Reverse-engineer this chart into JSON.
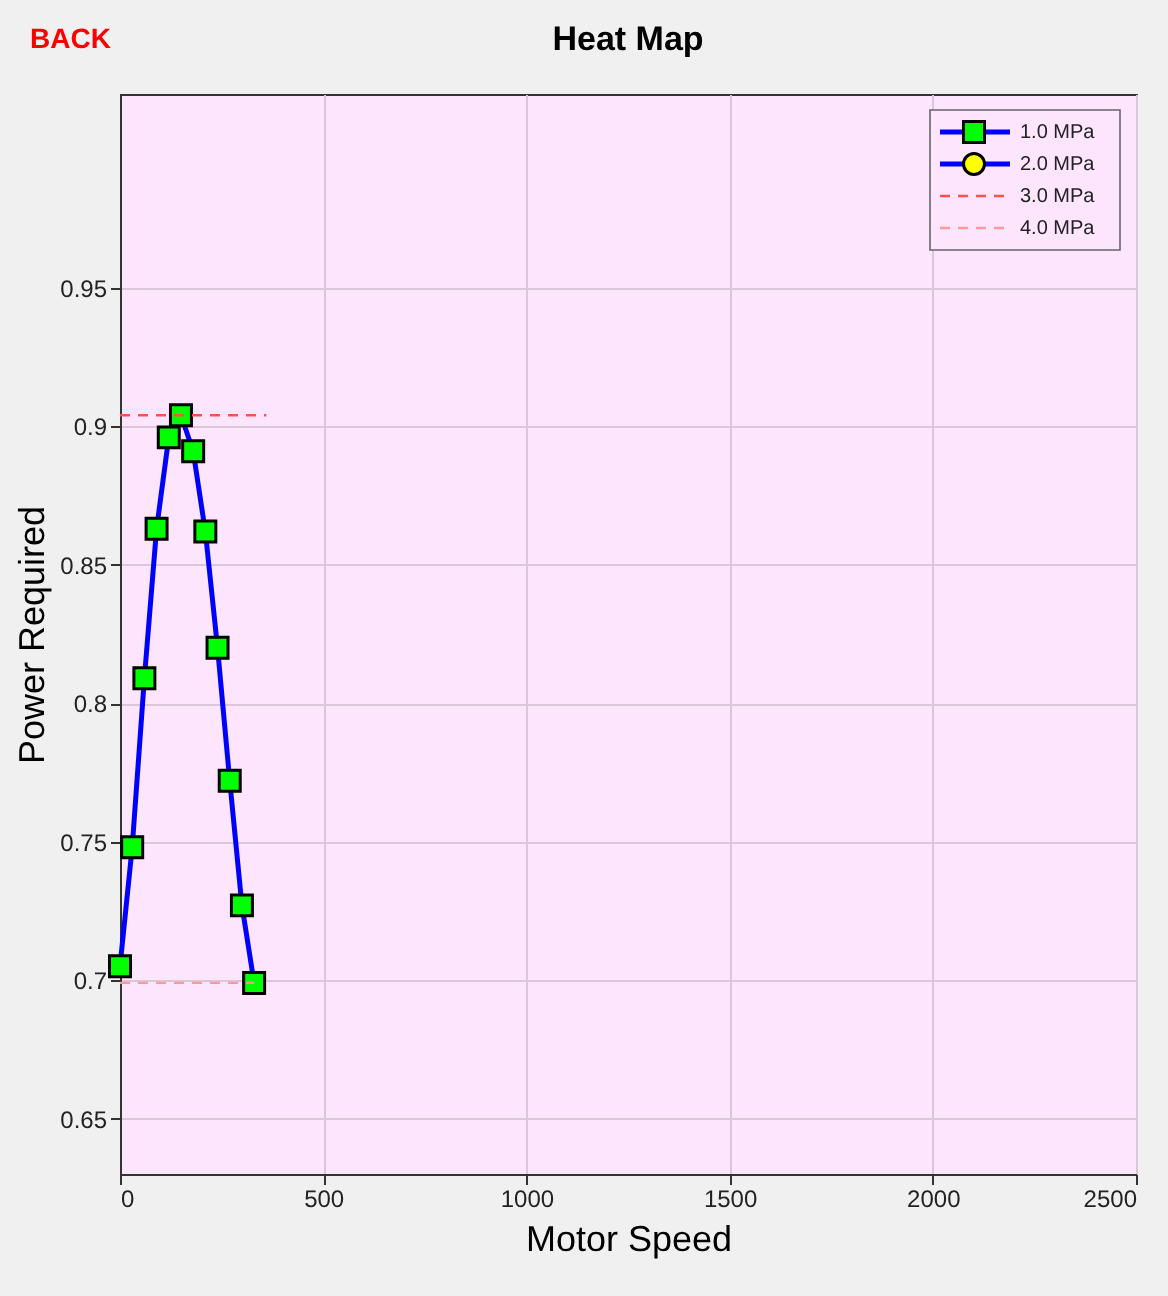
{
  "chart_data": {
    "type": "line",
    "title": "Heat Map",
    "xlabel": "Motor Speed",
    "ylabel": "Power Required",
    "annotations": [
      "BACK"
    ],
    "x": [
      0,
      30,
      60,
      90,
      120,
      150,
      180,
      210,
      240,
      270,
      300,
      330
    ],
    "series": [
      {
        "name": "1.0 MPa",
        "color": "#0000ff",
        "marker": "square",
        "line_style": "solid",
        "colors": [
          "#00ff00",
          "#00ff00",
          "#00ff00",
          "#00ff00",
          "#00ff00",
          "#00ff00",
          "#00ff00",
          "#00ff00",
          "#00ff00",
          "#00ff00",
          "#00ff00",
          "#00ff00"
        ],
        "values": [
          0.705,
          0.748,
          0.809,
          0.863,
          0.896,
          0.904,
          0.891,
          0.862,
          0.82,
          0.772,
          0.727,
          0.699
        ]
      },
      {
        "name": "2.0 MPa",
        "color": "#0000ff",
        "marker": "circle",
        "line_style": "solid",
        "colors": [
          "#ffff00",
          "#ffff00",
          "#ffff00",
          "#ffff00",
          "#ffff00",
          "#ffff00",
          "#ffff00",
          "#ffff00",
          "#ffff00",
          "#ffff00",
          "#ffff00",
          "#ffff00"
        ],
        "values": [
          null,
          null,
          null,
          null,
          null,
          null,
          null,
          null,
          null,
          null,
          null,
          null
        ]
      },
      {
        "name": "3.0 MPa",
        "color": "#ff5050",
        "marker": "none",
        "line_style": "dashed",
        "x": [
          0,
          360
        ],
        "values": [
          0.904,
          0.904
        ]
      },
      {
        "name": "4.0 MPa",
        "color": "#ff9999",
        "marker": "none",
        "line_style": "dashed",
        "x": [
          0,
          330
        ],
        "values": [
          0.699,
          0.699
        ]
      }
    ],
    "xlim": [
      0,
      2500
    ],
    "xticks": [
      0,
      500,
      1000,
      1500,
      2000,
      2500
    ],
    "ylim": [
      0.63,
      1.02
    ],
    "yticks": [
      0.65,
      0.7,
      0.75,
      0.8,
      0.85,
      0.9,
      0.95
    ],
    "grid": true,
    "legend": "top right"
  }
}
